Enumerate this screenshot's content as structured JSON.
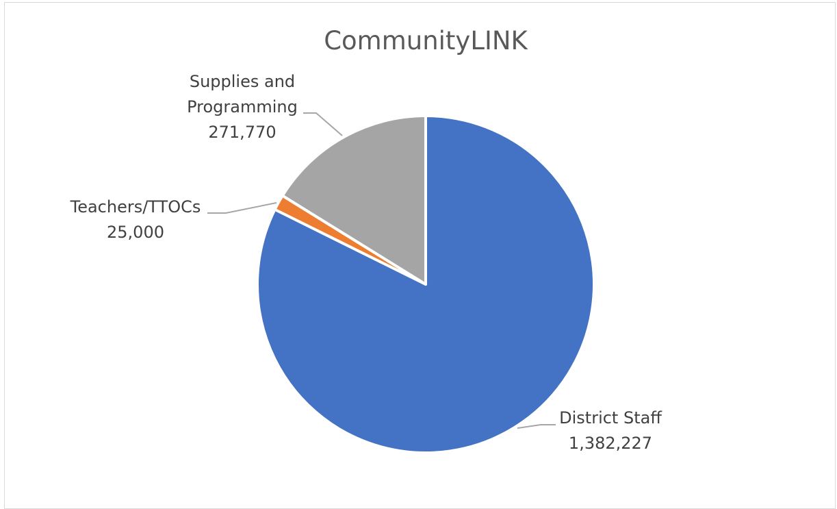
{
  "chart_data": {
    "type": "pie",
    "title": "CommunityLINK",
    "slices": [
      {
        "label": "District Staff",
        "value": 1382227,
        "value_text": "1,382,227",
        "color": "#4472C4"
      },
      {
        "label": "Teachers/TTOCs",
        "value": 25000,
        "value_text": "25,000",
        "color": "#ED7D31"
      },
      {
        "label": "Supplies and Programming",
        "value": 271770,
        "value_text": "271,770",
        "color": "#A5A5A5"
      }
    ],
    "legend": "none",
    "data_labels": "category and value, outside with leader lines"
  }
}
